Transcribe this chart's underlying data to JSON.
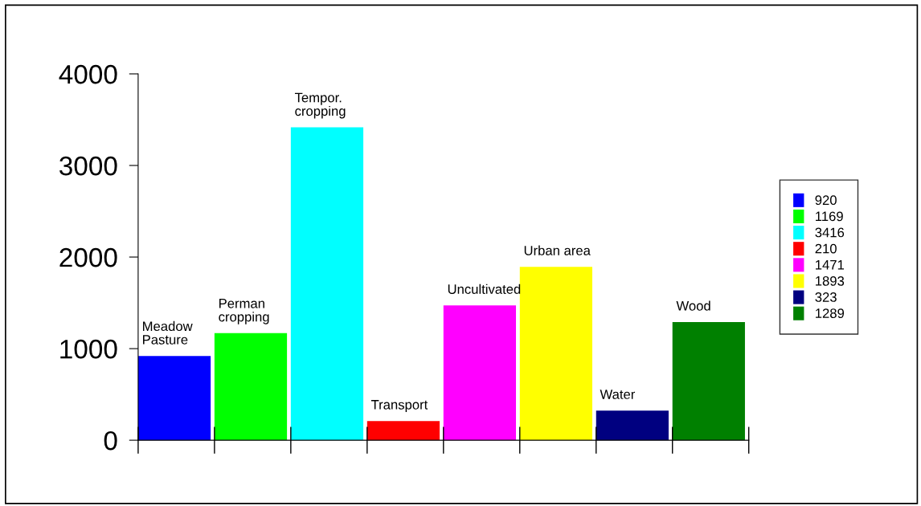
{
  "chart_data": {
    "type": "bar",
    "categories": [
      "Meadow\nPasture",
      "Perman\ncropping",
      "Tempor.\ncropping",
      "Transport",
      "Uncultivated",
      "Urban area",
      "Water",
      "Wood"
    ],
    "series": [
      {
        "name": "920",
        "color": "#0000ff",
        "values": [
          920,
          null,
          null,
          null,
          null,
          null,
          null,
          null
        ]
      },
      {
        "name": "1169",
        "color": "#00ff00",
        "values": [
          null,
          1169,
          null,
          null,
          null,
          null,
          null,
          null
        ]
      },
      {
        "name": "3416",
        "color": "#00ffff",
        "values": [
          null,
          null,
          3416,
          null,
          null,
          null,
          null,
          null
        ]
      },
      {
        "name": "210",
        "color": "#ff0000",
        "values": [
          null,
          null,
          null,
          210,
          null,
          null,
          null,
          null
        ]
      },
      {
        "name": "1471",
        "color": "#ff00ff",
        "values": [
          null,
          null,
          null,
          null,
          1471,
          null,
          null,
          null
        ]
      },
      {
        "name": "1893",
        "color": "#ffff00",
        "values": [
          null,
          null,
          null,
          null,
          null,
          1893,
          null,
          null
        ]
      },
      {
        "name": "323",
        "color": "#000080",
        "values": [
          null,
          null,
          null,
          null,
          null,
          null,
          323,
          null
        ]
      },
      {
        "name": "1289",
        "color": "#008000",
        "values": [
          null,
          null,
          null,
          null,
          null,
          null,
          null,
          1289
        ]
      }
    ],
    "ylim": [
      0,
      4000
    ],
    "yticks": [
      0,
      1000,
      2000,
      3000,
      4000
    ],
    "grid": false,
    "legend": "right"
  }
}
